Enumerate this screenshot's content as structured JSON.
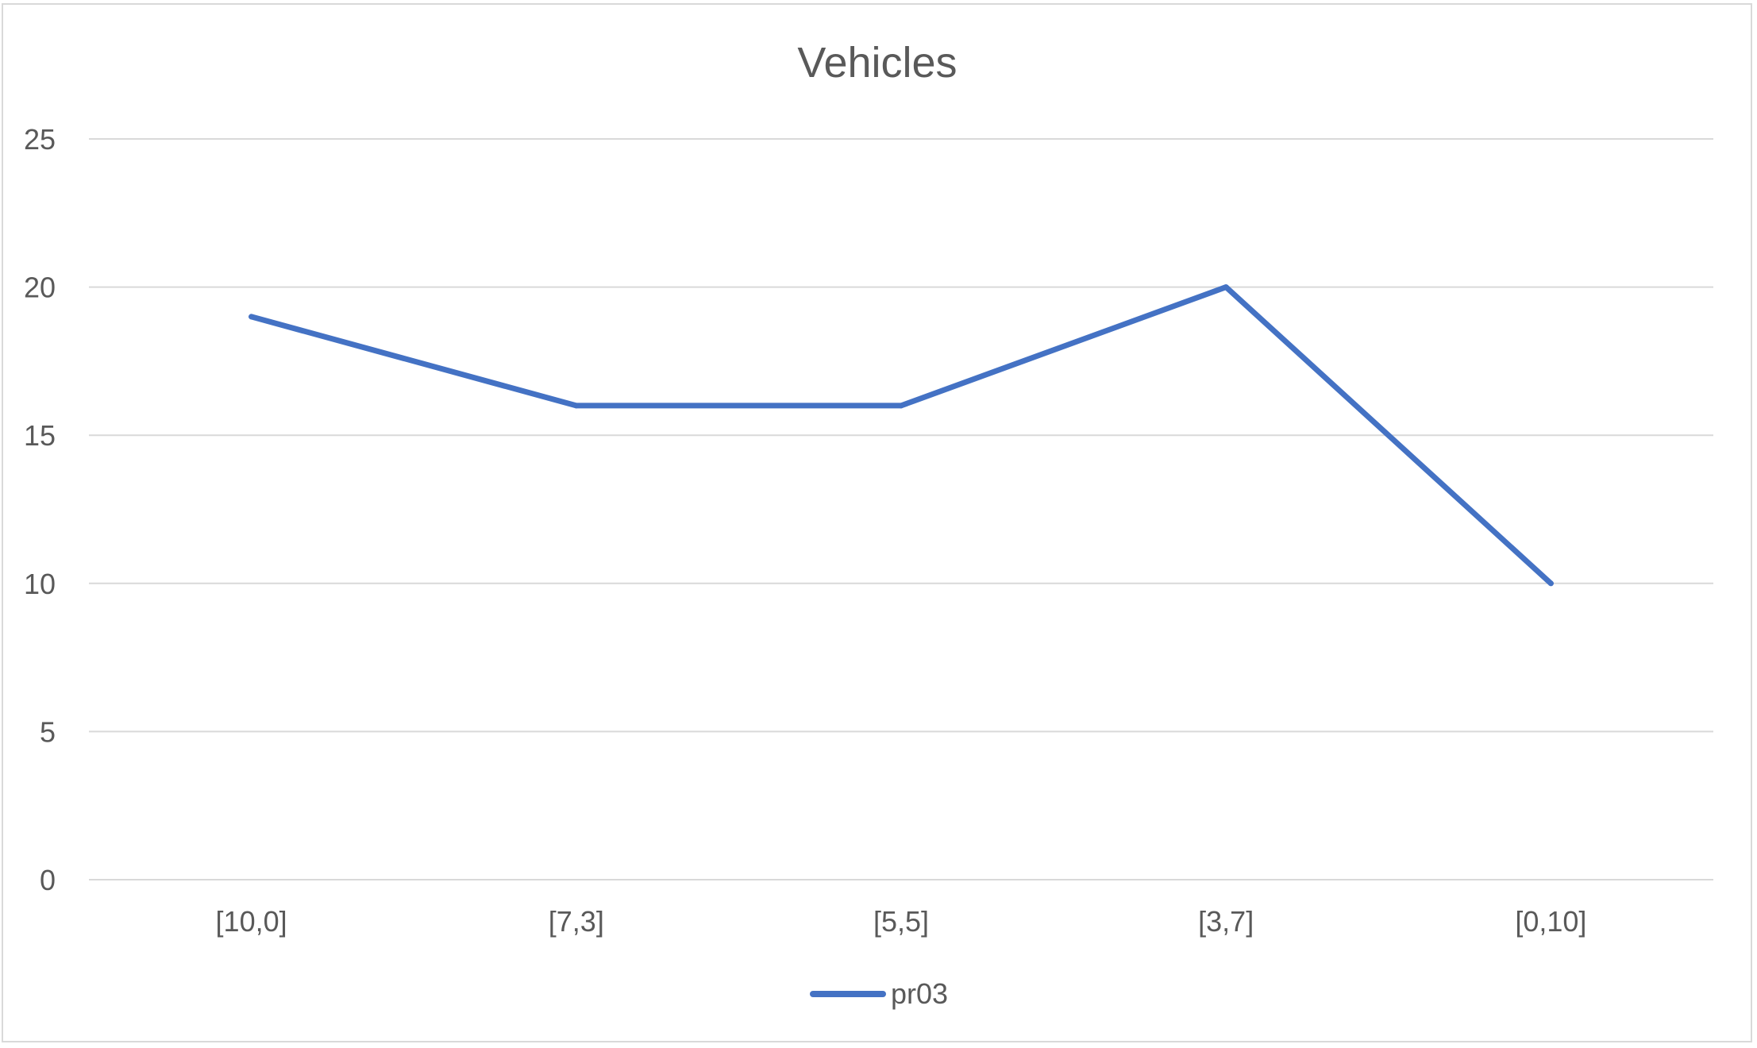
{
  "chart_data": {
    "type": "line",
    "title": "Vehicles",
    "xlabel": "",
    "ylabel": "",
    "categories": [
      "[10,0]",
      "[7,3]",
      "[5,5]",
      "[3,7]",
      "[0,10]"
    ],
    "series": [
      {
        "name": "pr03",
        "values": [
          19,
          16,
          16,
          20,
          10
        ],
        "color": "#4472c4"
      }
    ],
    "ylim": [
      0,
      25
    ],
    "yticks": [
      0,
      5,
      10,
      15,
      20,
      25
    ],
    "grid": true,
    "legend": "bottom",
    "gridline_color": "#d9d9d9",
    "text_color": "#595959"
  }
}
